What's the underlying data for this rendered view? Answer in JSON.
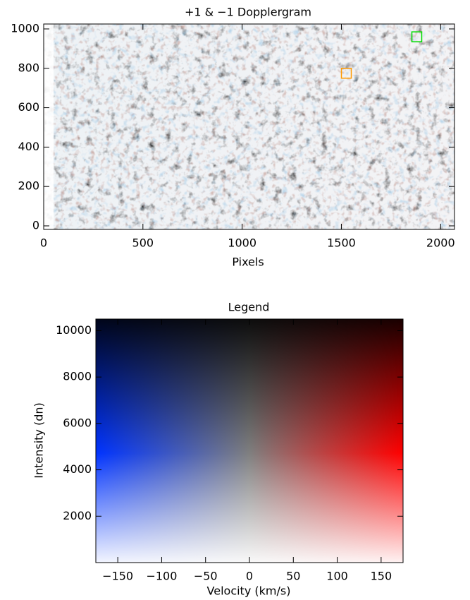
{
  "chart_data": [
    {
      "type": "image",
      "title": "+1 & −1 Dopplergram",
      "xlabel": "Pixels",
      "xlim": [
        0,
        2070
      ],
      "ylim": [
        -18,
        1025
      ],
      "xticks": [
        0,
        500,
        1000,
        1500,
        2000
      ],
      "yticks": [
        0,
        200,
        400,
        600,
        800,
        1000
      ],
      "markers": [
        {
          "x": 1525,
          "y": 775,
          "color": "#ff9900"
        },
        {
          "x": 1880,
          "y": 960,
          "color": "#00dd00"
        }
      ]
    },
    {
      "type": "colormap",
      "title": "Legend",
      "xlabel": "Velocity (km/s)",
      "ylabel": "Intensity (dn)",
      "xlim": [
        -175,
        175
      ],
      "ylim": [
        0,
        10500
      ],
      "xticks": [
        {
          "value": -150,
          "label": "−150"
        },
        {
          "value": -100,
          "label": "−100"
        },
        {
          "value": -50,
          "label": "−50"
        },
        0,
        50,
        100,
        150
      ],
      "yticks": [
        2000,
        4000,
        6000,
        8000,
        10000
      ],
      "colors": {
        "negative": "#0033ff",
        "positive": "#ff0000"
      }
    }
  ]
}
